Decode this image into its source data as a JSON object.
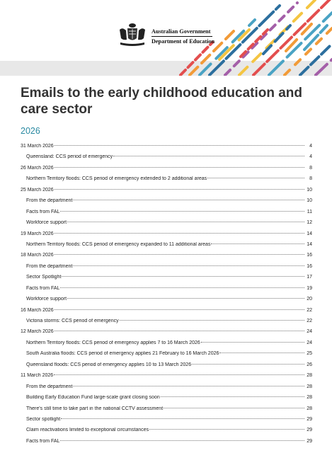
{
  "header": {
    "gov_line1": "Australian Government",
    "gov_line2": "Department of Education",
    "stripe_colors": [
      "#e34e4e",
      "#f29b38",
      "#4aa3c4",
      "#2c6f9e",
      "#a45fa8",
      "#f4c542"
    ]
  },
  "title": "Emails to the early childhood education and care sector",
  "year": "2026",
  "toc": [
    {
      "text": "31 March 2026",
      "page": "4",
      "level": 1
    },
    {
      "text": "Queensland: CCS period of emergency",
      "page": "4",
      "level": 2
    },
    {
      "text": "26 March 2026",
      "page": "8",
      "level": 1
    },
    {
      "text": "Northern Territory floods: CCS period of emergency extended to 2 additional areas",
      "page": "8",
      "level": 2
    },
    {
      "text": "25 March 2026",
      "page": "10",
      "level": 1
    },
    {
      "text": "From the department",
      "page": "10",
      "level": 2
    },
    {
      "text": "Facts from FAL",
      "page": "11",
      "level": 2
    },
    {
      "text": "Workforce support",
      "page": "12",
      "level": 2
    },
    {
      "text": "19 March 2026",
      "page": "14",
      "level": 1
    },
    {
      "text": "Northern Territory floods: CCS period of emergency expanded to 11 additional areas",
      "page": "14",
      "level": 2
    },
    {
      "text": "18 March 2026",
      "page": "16",
      "level": 1
    },
    {
      "text": "From the department",
      "page": "16",
      "level": 2
    },
    {
      "text": "Sector Spotlight",
      "page": "17",
      "level": 2
    },
    {
      "text": "Facts from FAL",
      "page": "19",
      "level": 2
    },
    {
      "text": "Workforce support",
      "page": "20",
      "level": 2
    },
    {
      "text": "16 March 2026",
      "page": "22",
      "level": 1
    },
    {
      "text": "Victoria storms: CCS period of emergency",
      "page": "22",
      "level": 2
    },
    {
      "text": "12 March 2026",
      "page": "24",
      "level": 1
    },
    {
      "text": "Northern Territory floods: CCS period of emergency applies 7 to 16 March 2026",
      "page": "24",
      "level": 2
    },
    {
      "text": "South Australia floods: CCS period of emergency applies 21 February to 16 March 2026",
      "page": "25",
      "level": 2
    },
    {
      "text": "Queensland floods: CCS period of emergency applies 10 to 13 March 2026",
      "page": "26",
      "level": 2
    },
    {
      "text": "11 March 2026",
      "page": "28",
      "level": 1
    },
    {
      "text": "From the department",
      "page": "28",
      "level": 2
    },
    {
      "text": "Building Early Education Fund large-scale grant closing soon",
      "page": "28",
      "level": 2
    },
    {
      "text": "There's still time to take part in the national CCTV assessment",
      "page": "28",
      "level": 2
    },
    {
      "text": "Sector spotlight",
      "page": "29",
      "level": 2
    },
    {
      "text": "Claim reactivations limited to exceptional circumstances",
      "page": "29",
      "level": 2
    },
    {
      "text": "Facts from FAL",
      "page": "29",
      "level": 2
    }
  ]
}
